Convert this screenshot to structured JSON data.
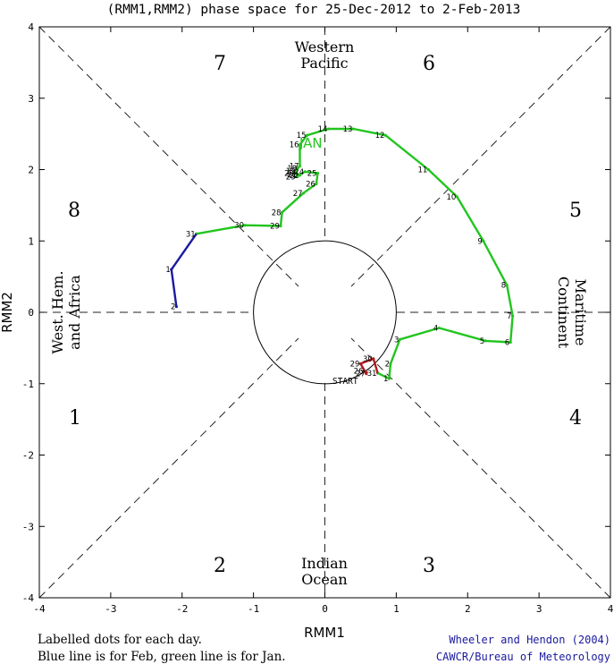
{
  "title": "(RMM1,RMM2) phase space for 25-Dec-2012 to  2-Feb-2013",
  "colors": {
    "dec": "#b0191f",
    "jan": "#22c51f",
    "feb": "#1a1aa0",
    "credit": "#1a1aa0"
  },
  "phases": [
    {
      "id": "p7",
      "label": "7"
    },
    {
      "id": "p6",
      "label": "6"
    },
    {
      "id": "p8",
      "label": "8"
    },
    {
      "id": "p5",
      "label": "5"
    },
    {
      "id": "p1",
      "label": "1"
    },
    {
      "id": "p4",
      "label": "4"
    },
    {
      "id": "p2",
      "label": "2"
    },
    {
      "id": "p3",
      "label": "3"
    }
  ],
  "regions": {
    "top": [
      "Western",
      "Pacific"
    ],
    "bottom": [
      "Indian",
      "Ocean"
    ],
    "left": [
      "West. Hem.",
      "and Africa"
    ],
    "right": [
      "Maritime",
      "Continent"
    ]
  },
  "notes": [
    "Labelled dots for each day.",
    "Blue line is for Feb, green line is for Jan."
  ],
  "credits": [
    "Wheeler and Hendon (2004)",
    "CAWCR/Bureau of Meteorology"
  ],
  "month_label": "JAN",
  "start_label": "START",
  "chart_data": {
    "type": "scatter",
    "xlabel": "RMM1",
    "ylabel": "RMM2",
    "xlim": [
      -4,
      4
    ],
    "ylim": [
      -4,
      4
    ],
    "xticks": [
      "-4",
      "-3",
      "-2",
      "-1",
      "0",
      "1",
      "2",
      "3",
      "4"
    ],
    "yticks": [
      "-4",
      "-3",
      "-2",
      "-1",
      "0",
      "1",
      "2",
      "3",
      "4"
    ],
    "unit_circle_radius": 1,
    "series": [
      {
        "name": "Dec",
        "color_key": "dec",
        "points": [
          {
            "x": 0.6,
            "y": -0.85,
            "label": ""
          },
          {
            "x": 0.55,
            "y": -0.82,
            "label": "26"
          },
          {
            "x": 0.58,
            "y": -0.86,
            "label": "27"
          },
          {
            "x": 0.5,
            "y": -0.72,
            "label": "29"
          },
          {
            "x": 0.68,
            "y": -0.65,
            "label": "30"
          },
          {
            "x": 0.74,
            "y": -0.85,
            "label": "31"
          }
        ]
      },
      {
        "name": "Jan",
        "color_key": "jan",
        "points": [
          {
            "x": 0.74,
            "y": -0.85,
            "label": ""
          },
          {
            "x": 0.9,
            "y": -0.93,
            "label": "1"
          },
          {
            "x": 0.92,
            "y": -0.72,
            "label": "2"
          },
          {
            "x": 1.05,
            "y": -0.38,
            "label": "3"
          },
          {
            "x": 1.6,
            "y": -0.22,
            "label": "4"
          },
          {
            "x": 2.25,
            "y": -0.4,
            "label": "5"
          },
          {
            "x": 2.6,
            "y": -0.42,
            "label": "6"
          },
          {
            "x": 2.63,
            "y": -0.05,
            "label": "7"
          },
          {
            "x": 2.55,
            "y": 0.38,
            "label": "8"
          },
          {
            "x": 2.22,
            "y": 1.0,
            "label": "9"
          },
          {
            "x": 1.85,
            "y": 1.62,
            "label": "10"
          },
          {
            "x": 1.45,
            "y": 2.0,
            "label": "11"
          },
          {
            "x": 0.85,
            "y": 2.48,
            "label": "12"
          },
          {
            "x": 0.4,
            "y": 2.57,
            "label": "13"
          },
          {
            "x": 0.05,
            "y": 2.57,
            "label": "14"
          },
          {
            "x": -0.25,
            "y": 2.48,
            "label": "15"
          },
          {
            "x": -0.35,
            "y": 2.35,
            "label": "16"
          },
          {
            "x": -0.35,
            "y": 2.05,
            "label": "17"
          },
          {
            "x": -0.38,
            "y": 2.02,
            "label": "18"
          },
          {
            "x": -0.4,
            "y": 1.98,
            "label": "19"
          },
          {
            "x": -0.42,
            "y": 1.95,
            "label": "20"
          },
          {
            "x": -0.38,
            "y": 1.93,
            "label": "21"
          },
          {
            "x": -0.35,
            "y": 1.92,
            "label": "22"
          },
          {
            "x": -0.4,
            "y": 1.9,
            "label": "23"
          },
          {
            "x": -0.28,
            "y": 1.97,
            "label": "24"
          },
          {
            "x": -0.1,
            "y": 1.95,
            "label": "25"
          },
          {
            "x": -0.12,
            "y": 1.8,
            "label": "26"
          },
          {
            "x": -0.3,
            "y": 1.67,
            "label": "27"
          },
          {
            "x": -0.6,
            "y": 1.4,
            "label": "28"
          },
          {
            "x": -0.62,
            "y": 1.21,
            "label": "29"
          },
          {
            "x": -1.12,
            "y": 1.22,
            "label": "30"
          },
          {
            "x": -1.8,
            "y": 1.1,
            "label": "31"
          }
        ]
      },
      {
        "name": "Feb",
        "color_key": "feb",
        "points": [
          {
            "x": -1.8,
            "y": 1.1,
            "label": ""
          },
          {
            "x": -2.15,
            "y": 0.6,
            "label": "1"
          },
          {
            "x": -2.08,
            "y": 0.08,
            "label": "2"
          }
        ]
      }
    ]
  }
}
